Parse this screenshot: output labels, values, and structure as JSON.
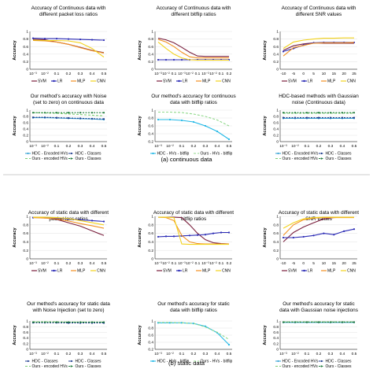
{
  "captions": {
    "continuous": "(a) continuous data",
    "static": "(b) static data"
  },
  "colors": {
    "SVM": "#7a1f3d",
    "LR": "#2b2bb5",
    "MLP": "#f29020",
    "CNN": "#f2d21c",
    "hdc_bitflip": "#22b8e6",
    "ours_bitflip": "#8fd98a",
    "hdc_classes": "#1b3a8c",
    "hdc_encoded": "#3fa7d6",
    "ours_classes": "#1f7a3a",
    "ours_encoded": "#7ccf73"
  },
  "chart_data": [
    {
      "type": "line",
      "title": [
        "Accuracy of Continuous data with",
        "different packet loss ratios"
      ],
      "ylabel": "Accuracy",
      "ylim": [
        0,
        1
      ],
      "yticks": [
        "0",
        "0.2",
        "0.4",
        "0.6",
        "0.8",
        "1"
      ],
      "categories": [
        "10⁻³",
        "10⁻²",
        "0.1",
        "0.2",
        "0.3",
        "0.4",
        "0.5"
      ],
      "legend": "bottom",
      "series": [
        {
          "name": "SVM",
          "values": [
            0.79,
            0.78,
            0.72,
            0.66,
            0.58,
            0.5,
            0.44
          ]
        },
        {
          "name": "LR",
          "values": [
            0.82,
            0.81,
            0.81,
            0.8,
            0.79,
            0.78,
            0.77
          ]
        },
        {
          "name": "MLP",
          "values": [
            0.76,
            0.75,
            0.72,
            0.66,
            0.57,
            0.49,
            0.43
          ]
        },
        {
          "name": "CNN",
          "values": [
            0.77,
            0.76,
            0.76,
            0.75,
            0.7,
            0.55,
            0.32
          ]
        }
      ]
    },
    {
      "type": "line",
      "title": [
        "Accuracy of Continuous data with",
        "different bitflip ratios"
      ],
      "ylabel": "Accuracy",
      "ylim": [
        0,
        1
      ],
      "yticks": [
        "0",
        "0.2",
        "0.4",
        "0.6",
        "0.8",
        "1"
      ],
      "categories": [
        "10⁻³",
        "10⁻²",
        "0.1",
        "10⁻³",
        "10⁻²",
        "0.1",
        "10⁻³",
        "10⁻²",
        "0.1",
        "0.2"
      ],
      "legend": "bottom",
      "series": [
        {
          "name": "SVM",
          "values": [
            0.82,
            0.78,
            0.7,
            0.58,
            0.45,
            0.35,
            0.34,
            0.34,
            0.34,
            0.34
          ]
        },
        {
          "name": "LR",
          "values": [
            0.25,
            0.25,
            0.25,
            0.25,
            0.25,
            0.25,
            0.25,
            0.25,
            0.25,
            0.25
          ]
        },
        {
          "name": "MLP",
          "values": [
            0.79,
            0.72,
            0.6,
            0.45,
            0.33,
            0.3,
            0.3,
            0.3,
            0.3,
            0.3
          ]
        },
        {
          "name": "CNN",
          "values": [
            0.72,
            0.55,
            0.4,
            0.3,
            0.25,
            0.24,
            0.24,
            0.24,
            0.24,
            0.24
          ]
        }
      ]
    },
    {
      "type": "line",
      "title": [
        "Accuracy of Continuous data with",
        "different SNR values"
      ],
      "ylabel": "Accuracy",
      "ylim": [
        0,
        1
      ],
      "yticks": [
        "0",
        "0.2",
        "0.4",
        "0.6",
        "0.8",
        "1"
      ],
      "categories": [
        "-10",
        "-5",
        "0",
        "5",
        "10",
        "15",
        "20",
        "25"
      ],
      "legend": "bottom",
      "series": [
        {
          "name": "SVM",
          "values": [
            0.5,
            0.62,
            0.67,
            0.7,
            0.69,
            0.69,
            0.69,
            0.69
          ]
        },
        {
          "name": "LR",
          "values": [
            0.47,
            0.55,
            0.64,
            0.7,
            0.71,
            0.71,
            0.71,
            0.71
          ]
        },
        {
          "name": "MLP",
          "values": [
            0.35,
            0.57,
            0.63,
            0.69,
            0.7,
            0.7,
            0.7,
            0.71
          ]
        },
        {
          "name": "CNN",
          "values": [
            0.55,
            0.72,
            0.77,
            0.8,
            0.82,
            0.82,
            0.83,
            0.83
          ]
        }
      ]
    },
    {
      "type": "line",
      "title": [
        "Our method's accuracy with Noise",
        "(set to zero) on continuous data"
      ],
      "ylabel": "Accuracy",
      "ylim": [
        0,
        1
      ],
      "yticks": [
        "0",
        "0.2",
        "0.4",
        "0.6",
        "0.8",
        "1"
      ],
      "categories": [
        "10⁻³",
        "10⁻²",
        "0.1",
        "0.2",
        "0.3",
        "0.4",
        "0.5"
      ],
      "legend": "bottom",
      "series": [
        {
          "name": "HDC - Encoded HVs",
          "values": [
            0.76,
            0.76,
            0.75,
            0.74,
            0.73,
            0.72,
            0.7
          ]
        },
        {
          "name": "HDC - Classes",
          "values": [
            0.77,
            0.77,
            0.76,
            0.75,
            0.74,
            0.73,
            0.72
          ]
        },
        {
          "name": "Ours - encoded HVs",
          "values": [
            0.92,
            0.91,
            0.9,
            0.88,
            0.86,
            0.84,
            0.82
          ]
        },
        {
          "name": "Ours - Classes",
          "values": [
            0.92,
            0.92,
            0.92,
            0.92,
            0.92,
            0.92,
            0.92
          ]
        }
      ]
    },
    {
      "type": "line",
      "title": [
        "Our method's accuracy for continuous",
        "data with bitflip ratios"
      ],
      "ylabel": "Accuracy",
      "ylim": [
        0.2,
        1
      ],
      "yticks": [
        "0.2",
        "0.4",
        "0.6",
        "0.8",
        "1"
      ],
      "categories": [
        "10⁻³",
        "10⁻²",
        "0.1",
        "0.2",
        "0.3",
        "0.4",
        "0.5"
      ],
      "legend": "bottom",
      "series": [
        {
          "name": "HDC - HVs - bitflip",
          "values": [
            0.76,
            0.76,
            0.74,
            0.7,
            0.6,
            0.46,
            0.26
          ]
        },
        {
          "name": "Ours - HVs - bitflip",
          "values": [
            0.95,
            0.95,
            0.94,
            0.9,
            0.84,
            0.75,
            0.6
          ]
        }
      ]
    },
    {
      "type": "line",
      "title": [
        "HDC-based methods with Gaussian",
        "noise (Continuous data)"
      ],
      "ylabel": "Accuracy",
      "ylim": [
        0,
        1
      ],
      "yticks": [
        "0",
        "0.2",
        "0.4",
        "0.6",
        "0.8",
        "1"
      ],
      "categories": [
        "10⁻³",
        "10⁻²",
        "0.1",
        "0.2",
        "0.3",
        "0.4",
        "0.5"
      ],
      "legend": "bottom",
      "series": [
        {
          "name": "HDC - Encoded HVs",
          "values": [
            0.74,
            0.74,
            0.74,
            0.74,
            0.74,
            0.74,
            0.74
          ]
        },
        {
          "name": "HDC - Classes",
          "values": [
            0.76,
            0.76,
            0.76,
            0.76,
            0.76,
            0.76,
            0.76
          ]
        },
        {
          "name": "Ours - encoded HVs",
          "values": [
            0.9,
            0.9,
            0.9,
            0.9,
            0.9,
            0.9,
            0.9
          ]
        },
        {
          "name": "Ours - Classes",
          "values": [
            0.92,
            0.92,
            0.92,
            0.92,
            0.92,
            0.92,
            0.92
          ]
        }
      ]
    },
    {
      "type": "line",
      "title": [
        "Accuracy of static data with different",
        "packet loss ratios"
      ],
      "ylabel": "Accuracy",
      "ylim": [
        0,
        1
      ],
      "yticks": [
        "0",
        "0.2",
        "0.4",
        "0.6",
        "0.8",
        "1"
      ],
      "categories": [
        "10⁻³",
        "10⁻²",
        "0.1",
        "0.2",
        "0.3",
        "0.4",
        "0.5"
      ],
      "legend": "bottom",
      "series": [
        {
          "name": "SVM",
          "values": [
            0.98,
            0.97,
            0.93,
            0.85,
            0.77,
            0.66,
            0.55
          ]
        },
        {
          "name": "LR",
          "values": [
            0.97,
            0.97,
            0.96,
            0.94,
            0.92,
            0.9,
            0.88
          ]
        },
        {
          "name": "MLP",
          "values": [
            0.97,
            0.96,
            0.94,
            0.89,
            0.83,
            0.78,
            0.72
          ]
        },
        {
          "name": "CNN",
          "values": [
            0.98,
            0.98,
            0.97,
            0.95,
            0.9,
            0.85,
            0.8
          ]
        }
      ]
    },
    {
      "type": "line",
      "title": [
        "Accuracy of static data with different",
        "bitflip ratios"
      ],
      "ylabel": "Accuracy",
      "ylim": [
        0,
        1
      ],
      "yticks": [
        "0",
        "0.2",
        "0.4",
        "0.6",
        "0.8",
        "1"
      ],
      "categories": [
        "10⁻³",
        "10⁻²",
        "0.1",
        "10⁻³",
        "10⁻²",
        "0.1",
        "10⁻³",
        "10⁻²",
        "0.1",
        "0.2"
      ],
      "legend": "bottom",
      "series": [
        {
          "name": "SVM",
          "values": [
            0.98,
            0.98,
            0.98,
            0.97,
            0.8,
            0.6,
            0.45,
            0.38,
            0.36,
            0.35
          ]
        },
        {
          "name": "LR",
          "values": [
            0.52,
            0.53,
            0.53,
            0.54,
            0.55,
            0.56,
            0.57,
            0.6,
            0.62,
            0.62
          ]
        },
        {
          "name": "MLP",
          "values": [
            0.98,
            0.97,
            0.9,
            0.55,
            0.4,
            0.36,
            0.35,
            0.35,
            0.35,
            0.35
          ]
        },
        {
          "name": "CNN",
          "values": [
            0.98,
            0.98,
            0.97,
            0.35,
            0.34,
            0.34,
            0.34,
            0.34,
            0.34,
            0.34
          ]
        }
      ]
    },
    {
      "type": "line",
      "title": [
        "Accuracy of static data with different",
        "SNR values"
      ],
      "ylabel": "Accuracy",
      "ylim": [
        0,
        1
      ],
      "yticks": [
        "0",
        "0.2",
        "0.4",
        "0.6",
        "0.8",
        "1"
      ],
      "categories": [
        "-10",
        "-5",
        "0",
        "5",
        "10",
        "15",
        "20",
        "25"
      ],
      "legend": "bottom",
      "series": [
        {
          "name": "SVM",
          "values": [
            0.4,
            0.62,
            0.75,
            0.85,
            0.94,
            0.97,
            0.98,
            0.98
          ]
        },
        {
          "name": "LR",
          "values": [
            0.5,
            0.5,
            0.52,
            0.55,
            0.6,
            0.57,
            0.65,
            0.7
          ]
        },
        {
          "name": "MLP",
          "values": [
            0.55,
            0.8,
            0.92,
            0.96,
            0.97,
            0.97,
            0.97,
            0.97
          ]
        },
        {
          "name": "CNN",
          "values": [
            0.72,
            0.85,
            0.94,
            0.97,
            0.98,
            0.98,
            0.98,
            0.98
          ]
        }
      ]
    },
    {
      "type": "line",
      "title": [
        "Our method's accuracy for static data",
        "with Noise Injection (set to zero)"
      ],
      "ylabel": "Accuracy",
      "ylim": [
        0,
        1
      ],
      "yticks": [
        "0",
        "0.2",
        "0.4",
        "0.6",
        "0.8",
        "1"
      ],
      "categories": [
        "10⁻³",
        "10⁻²",
        "0.1",
        "0.2",
        "0.3",
        "0.4",
        "0.5"
      ],
      "legend": "bottom",
      "series": [
        {
          "name": "HDC - Classes",
          "values": [
            0.94,
            0.94,
            0.94,
            0.93,
            0.93,
            0.93,
            0.93
          ]
        },
        {
          "name": "HDC - Classes",
          "values": [
            0.95,
            0.95,
            0.95,
            0.95,
            0.94,
            0.94,
            0.94
          ]
        },
        {
          "name": "Ours - encoded HVs",
          "values": [
            0.97,
            0.97,
            0.97,
            0.96,
            0.96,
            0.96,
            0.96
          ]
        },
        {
          "name": "Ours - Classes",
          "values": [
            0.96,
            0.96,
            0.96,
            0.96,
            0.96,
            0.96,
            0.96
          ]
        }
      ]
    },
    {
      "type": "line",
      "title": [
        "Our method's accuracy for static",
        "data with bitflip ratios"
      ],
      "ylabel": "Accuracy",
      "ylim": [
        0.2,
        1
      ],
      "yticks": [
        "0.2",
        "0.4",
        "0.6",
        "0.8",
        "1"
      ],
      "categories": [
        "10⁻³",
        "10⁻²",
        "0.1",
        "0.2",
        "0.3",
        "0.4",
        "0.5"
      ],
      "legend": "bottom",
      "series": [
        {
          "name": "HDC - HVs - bitflip",
          "values": [
            0.95,
            0.95,
            0.95,
            0.93,
            0.85,
            0.67,
            0.33
          ]
        },
        {
          "name": "Ours - HVs - bitflip",
          "values": [
            0.96,
            0.96,
            0.95,
            0.93,
            0.83,
            0.68,
            0.48
          ]
        }
      ]
    },
    {
      "type": "line",
      "title": [
        "Our method's accuracy for static",
        "data with Gaussian noise injections"
      ],
      "ylabel": "Accuracy",
      "ylim": [
        0,
        1
      ],
      "yticks": [
        "0",
        "0.2",
        "0.4",
        "0.6",
        "0.8",
        "1"
      ],
      "categories": [
        "10⁻³",
        "10⁻²",
        "0.1",
        "0.2",
        "0.3",
        "0.4",
        "0.5"
      ],
      "legend": "bottom",
      "series": [
        {
          "name": "HDC - Encoded HVs",
          "values": [
            0.95,
            0.95,
            0.95,
            0.95,
            0.95,
            0.95,
            0.95
          ]
        },
        {
          "name": "HDC - Classes",
          "values": [
            0.96,
            0.96,
            0.96,
            0.96,
            0.96,
            0.96,
            0.96
          ]
        },
        {
          "name": "Ours - encoded HVs",
          "values": [
            0.97,
            0.97,
            0.97,
            0.97,
            0.97,
            0.97,
            0.97
          ]
        },
        {
          "name": "Ours - Classes",
          "values": [
            0.96,
            0.96,
            0.96,
            0.96,
            0.96,
            0.96,
            0.96
          ]
        }
      ]
    }
  ]
}
